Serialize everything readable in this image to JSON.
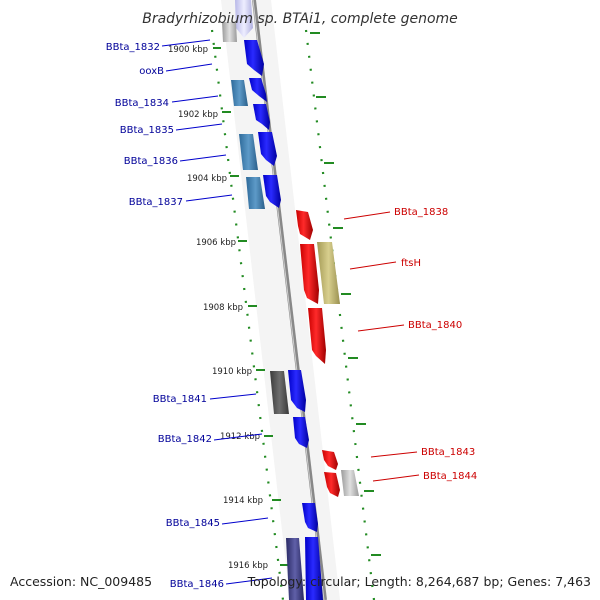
{
  "title": "Bradyrhizobium sp. BTAi1, complete genome",
  "footer": {
    "accession": "Accession: NC_009485",
    "summary": "Topology: circular; Length: 8,264,687 bp; Genes: 7,463"
  },
  "colors": {
    "forward_strand": "#0000ff",
    "reverse_strand": "#ff0000",
    "forward_label": "#000099",
    "reverse_label": "#cc0000",
    "backbone": "#888888",
    "tick": "#228B22"
  },
  "kbp_ticks": [
    {
      "label": "1900 kbp"
    },
    {
      "label": "1902 kbp"
    },
    {
      "label": "1904 kbp"
    },
    {
      "label": "1906 kbp"
    },
    {
      "label": "1908 kbp"
    },
    {
      "label": "1910 kbp"
    },
    {
      "label": "1912 kbp"
    },
    {
      "label": "1914 kbp"
    },
    {
      "label": "1916 kbp"
    }
  ],
  "genes": [
    {
      "label": "BBta_1832",
      "strand": "forward"
    },
    {
      "label": "ooxB",
      "strand": "forward"
    },
    {
      "label": "BBta_1834",
      "strand": "forward"
    },
    {
      "label": "BBta_1835",
      "strand": "forward"
    },
    {
      "label": "BBta_1836",
      "strand": "forward"
    },
    {
      "label": "BBta_1837",
      "strand": "forward"
    },
    {
      "label": "BBta_1838",
      "strand": "reverse"
    },
    {
      "label": "ftsH",
      "strand": "reverse"
    },
    {
      "label": "BBta_1840",
      "strand": "reverse"
    },
    {
      "label": "BBta_1841",
      "strand": "forward"
    },
    {
      "label": "BBta_1842",
      "strand": "forward"
    },
    {
      "label": "BBta_1843",
      "strand": "reverse"
    },
    {
      "label": "BBta_1844",
      "strand": "reverse"
    },
    {
      "label": "BBta_1845",
      "strand": "forward"
    },
    {
      "label": "BBta_1846",
      "strand": "forward"
    }
  ]
}
